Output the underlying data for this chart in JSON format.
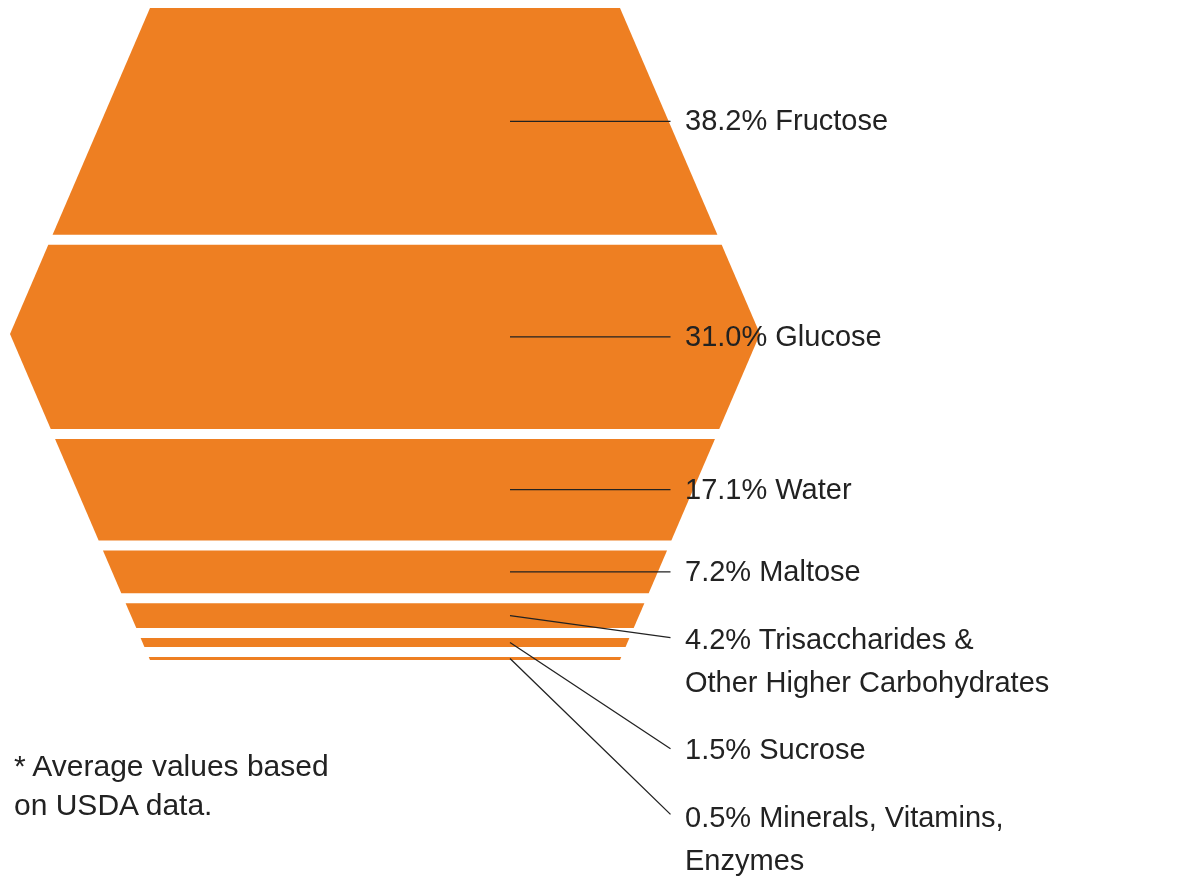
{
  "chart_data": {
    "type": "other",
    "categories": [
      "Fructose",
      "Glucose",
      "Water",
      "Maltose",
      "Trisaccharides &\nOther Higher Carbohydrates",
      "Sucrose",
      "Minerals, Vitamins,\nEnzymes"
    ],
    "values": [
      38.2,
      31.0,
      17.1,
      7.2,
      4.2,
      1.5,
      0.5
    ],
    "value_labels": [
      "38.2%",
      "31.0%",
      "17.1%",
      "7.2%",
      "4.2%",
      "1.5%",
      "0.5%"
    ],
    "color": "#ee7f22",
    "annotations": [
      "* Average values based\non USDA data."
    ]
  }
}
